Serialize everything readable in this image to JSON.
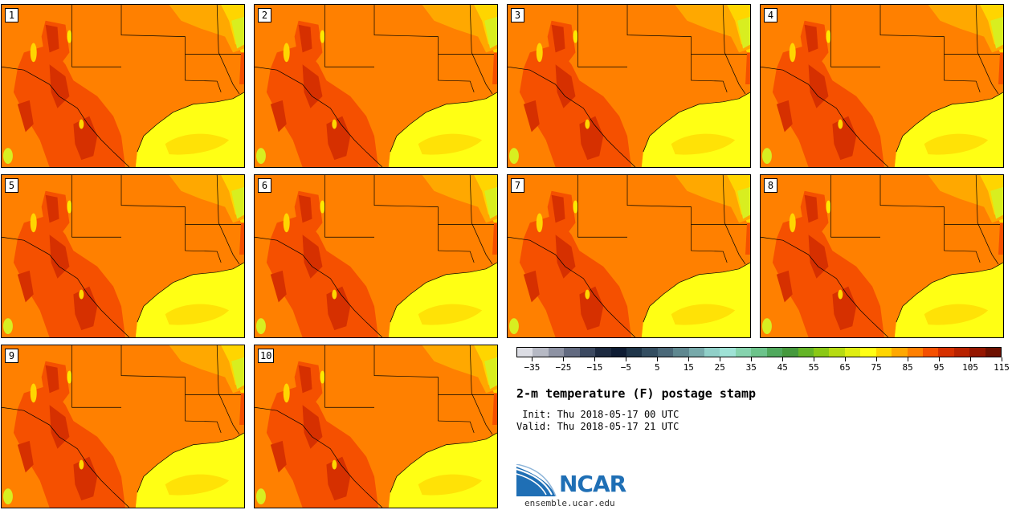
{
  "panels": [
    {
      "label": "1"
    },
    {
      "label": "2"
    },
    {
      "label": "3"
    },
    {
      "label": "4"
    },
    {
      "label": "5"
    },
    {
      "label": "6"
    },
    {
      "label": "7"
    },
    {
      "label": "8"
    },
    {
      "label": "9"
    },
    {
      "label": "10"
    }
  ],
  "colorbar": {
    "colors": [
      "#dcdde4",
      "#b6b9c4",
      "#8d92a3",
      "#626a80",
      "#3c4960",
      "#1d2a40",
      "#0e1c33",
      "#1f3549",
      "#344e61",
      "#4a6878",
      "#5f8890",
      "#77a9aa",
      "#90cfc8",
      "#9fe2d6",
      "#86d3ae",
      "#6cc38b",
      "#50a95d",
      "#45993d",
      "#64b427",
      "#8ac815",
      "#b6db13",
      "#dfee12",
      "#ffff14",
      "#ffd500",
      "#ffa800",
      "#ff8000",
      "#f55000",
      "#d63000",
      "#b82200",
      "#951600",
      "#6d1000"
    ],
    "tick_labels": [
      "−35",
      "−25",
      "−15",
      "−5",
      "5",
      "15",
      "25",
      "35",
      "45",
      "55",
      "65",
      "75",
      "85",
      "95",
      "105",
      "115"
    ]
  },
  "title": "2-m temperature (F) postage stamp",
  "init_text": " Init: Thu 2018-05-17 00 UTC",
  "valid_text": "Valid: Thu 2018-05-17 21 UTC",
  "logo": {
    "name": "NCAR",
    "url": "ensemble.ucar.edu",
    "icon": "ncar-wave-logo"
  }
}
